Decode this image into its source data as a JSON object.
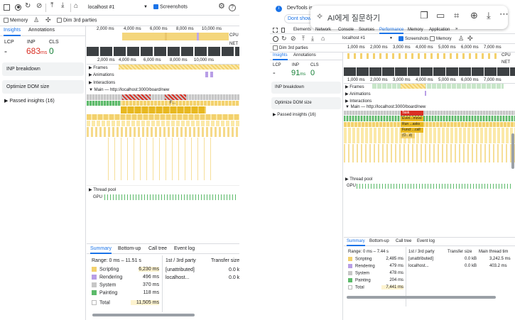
{
  "left": {
    "toolbar": {
      "target": "localhost #1",
      "screenshots": "Screenshots"
    },
    "options": {
      "memory": "Memory",
      "dim3p": "Dim 3rd parties"
    },
    "sidebar": {
      "tabs": [
        "Insights",
        "Annotations"
      ],
      "lcp": "LCP",
      "inp": "INP",
      "cls": "CLS",
      "lcp_val": "-",
      "inp_num": "683",
      "inp_unit": "ms",
      "cls_val": "0",
      "items": [
        "INP breakdown",
        "Optimize DOM size"
      ],
      "passed": "Passed insights (16)"
    },
    "ruler_top": [
      "2,000 ms",
      "4,000 ms",
      "6,000 ms",
      "8,000 ms",
      "10,000 ms"
    ],
    "ruler_main": [
      "2,000 ms",
      "4,000 ms",
      "6,000 ms",
      "8,000 ms",
      "10,000 ms"
    ],
    "cpu": "CPU",
    "net": "NET",
    "tracks": {
      "frames": "Frames",
      "animations": "Animations",
      "interactions": "Interactions",
      "main": "Main — http://localhost:3000/board/new",
      "thread_pool": "Thread pool",
      "gpu": "GPU"
    },
    "flame_label": "F...",
    "bottom": {
      "tabs": [
        "Summary",
        "Bottom-up",
        "Call tree",
        "Event log"
      ],
      "range": "Range: 0 ms – 11.51 s",
      "legend": [
        {
          "label": "Scripting",
          "value": "6,230 ms",
          "color": "#f3d16d"
        },
        {
          "label": "Rendering",
          "value": "496 ms",
          "color": "#b89ee6"
        },
        {
          "label": "System",
          "value": "370 ms",
          "color": "#c7c7c7"
        },
        {
          "label": "Painting",
          "value": "118 ms",
          "color": "#5cba6a"
        }
      ],
      "total_label": "Total",
      "total_value": "11,505 ms",
      "thirdparty": {
        "header": "1st / 3rd party",
        "col": "Transfer size",
        "rows": [
          {
            "name": "[unattributed]",
            "value": "0.0 k"
          },
          {
            "name": "localhost...",
            "value": "0.0 k"
          }
        ]
      }
    }
  },
  "right": {
    "devtools_title": "DevTools is n",
    "dont_show": "Dont show",
    "popup": {
      "ai_text": "AI에게 질문하기"
    },
    "main_tabs": [
      "Elements",
      "Network",
      "Console",
      "Sources",
      "Performance",
      "Memory",
      "Application"
    ],
    "more": "»",
    "toolbar": {
      "target": "localhost #1",
      "screenshots": "Screenshots",
      "memory": "Memory"
    },
    "dim3p": "Dim 3rd parties",
    "sidebar": {
      "tabs": [
        "Insights",
        "Annotations"
      ],
      "lcp": "LCP",
      "inp": "INP",
      "cls": "CLS",
      "lcp_val": "-",
      "inp_num": "91",
      "inp_unit": "ms",
      "cls_val": "0",
      "items": [
        "INP breakdown",
        "Optimize DOM size"
      ],
      "passed": "Passed insights (16)"
    },
    "ruler_top": [
      "1,000 ms",
      "2,000 ms",
      "3,000 ms",
      "4,000 ms",
      "5,000 ms",
      "6,000 ms",
      "7,000 ms"
    ],
    "ruler_main": [
      "1,000 ms",
      "2,000 ms",
      "3,000 ms",
      "4,000 ms",
      "5,000 ms",
      "6,000 ms",
      "7,000 ms"
    ],
    "cpu": "CPU",
    "net": "NET",
    "tracks": {
      "frames": "Frames",
      "animations": "Animations",
      "interactions": "Interactions",
      "main": "Main — http://localhost:3000/board/new",
      "thread_pool": "Thread pool",
      "gpu": "GPU"
    },
    "flame": {
      "task": "Task",
      "event": "Even...move",
      "run": "Run ...asks",
      "funct": "Funct ...call",
      "o": "(O...d)"
    },
    "bottom": {
      "tabs": [
        "Summary",
        "Bottom-up",
        "Call tree",
        "Event log"
      ],
      "range": "Range: 0 ms – 7.44 s",
      "legend": [
        {
          "label": "Scripting",
          "value": "2,485 ms",
          "color": "#f3d16d"
        },
        {
          "label": "Rendering",
          "value": "479 ms",
          "color": "#b89ee6"
        },
        {
          "label": "System",
          "value": "478 ms",
          "color": "#c7c7c7"
        },
        {
          "label": "Painting",
          "value": "204 ms",
          "color": "#5cba6a"
        }
      ],
      "total_label": "Total",
      "total_value": "7,441 ms",
      "thirdparty": {
        "header": "1st / 3rd party",
        "col1": "Transfer size",
        "col2": "Main thread tim",
        "rows": [
          {
            "name": "[unattributed]",
            "v1": "0.0 kB",
            "v2": "3,242.5 ms"
          },
          {
            "name": "localhost...",
            "v1": "0.0 kB",
            "v2": "403.2 ms"
          }
        ]
      }
    }
  }
}
